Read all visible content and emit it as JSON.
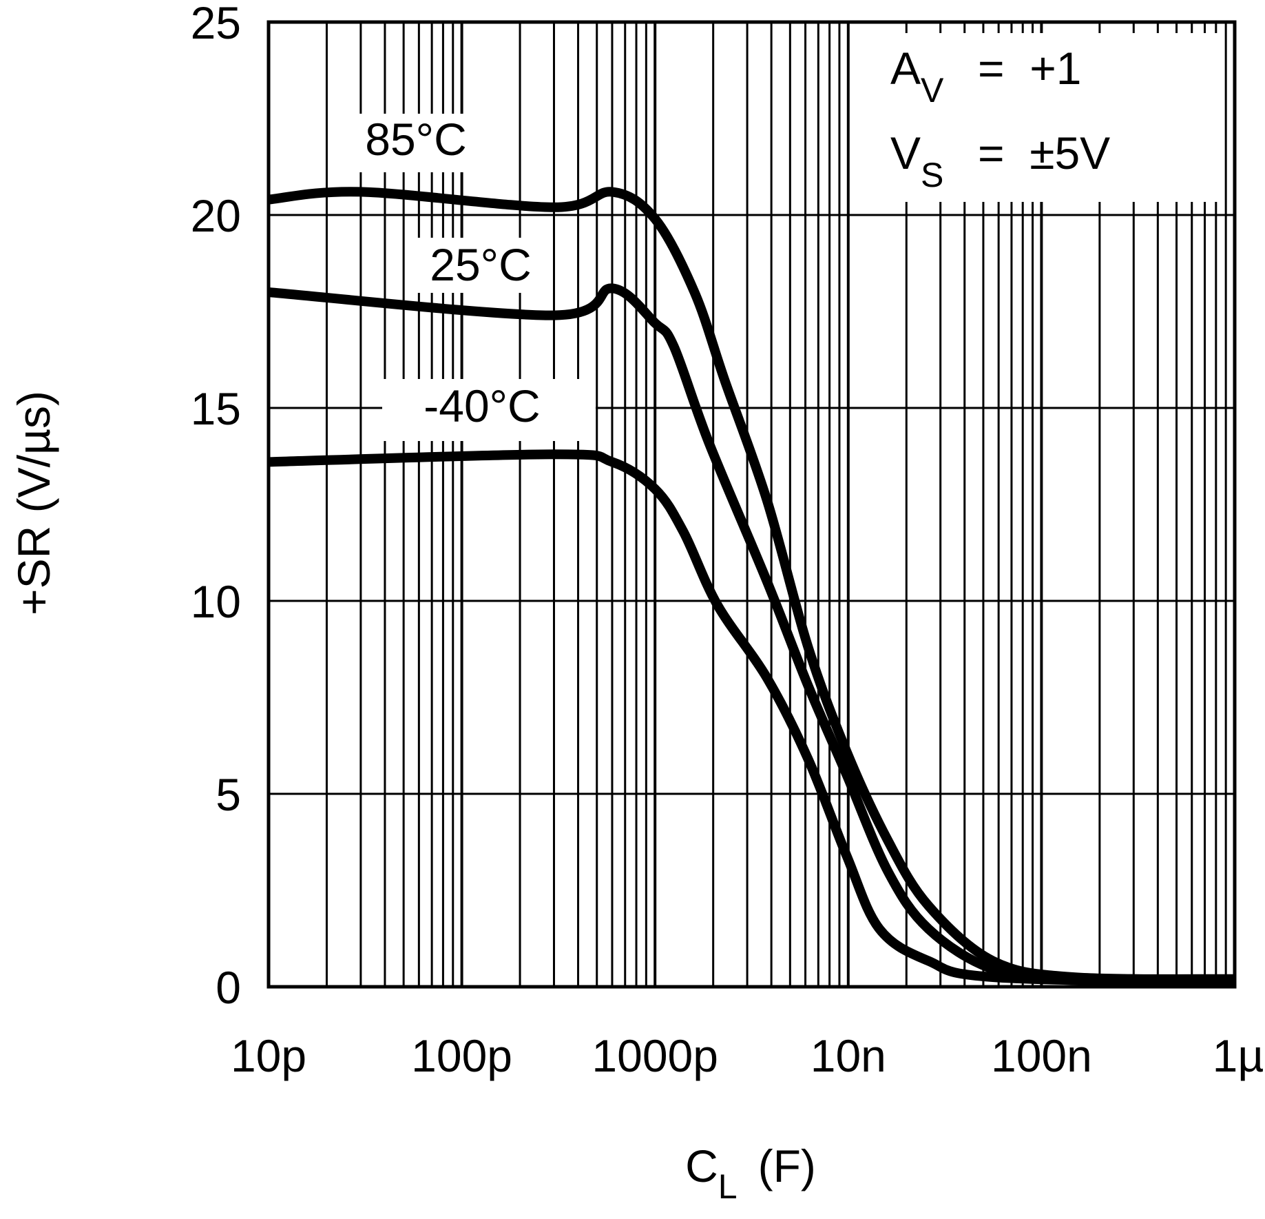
{
  "chart_data": {
    "type": "line",
    "title": "",
    "xlabel": "C",
    "xlabel_sub": "L",
    "xlabel_unit": "(F)",
    "ylabel": "+SR (V/µs)",
    "xscale": "log",
    "xlim": [
      1e-11,
      1e-06
    ],
    "ylim": [
      0,
      25
    ],
    "grid": true,
    "xticks": [
      1e-11,
      1e-10,
      1e-09,
      1e-08,
      1e-07,
      1e-06
    ],
    "xtick_labels": [
      "10p",
      "100p",
      "1000p",
      "10n",
      "100n",
      "1µ"
    ],
    "yticks": [
      0,
      5,
      10,
      15,
      20,
      25
    ],
    "ytick_labels": [
      "0",
      "5",
      "10",
      "15",
      "20",
      "25"
    ],
    "annotations": {
      "av_label": "A",
      "av_sub": "V",
      "av_value": "=  +1",
      "vs_label": "V",
      "vs_sub": "S",
      "vs_value": "=  ±5V"
    },
    "series": [
      {
        "name": "85°C",
        "x": [
          1e-11,
          3e-11,
          3e-10,
          6e-10,
          1e-09,
          1.6e-09,
          2.3e-09,
          3.8e-09,
          6.2e-09,
          9.8e-09,
          1.6e-08,
          2.6e-08,
          5.6e-08,
          1.45e-07,
          1e-06
        ],
        "y": [
          20.4,
          20.6,
          20.2,
          20.6,
          19.9,
          18.0,
          15.7,
          12.6,
          8.8,
          6.1,
          3.8,
          2.1,
          0.67,
          0.25,
          0.2
        ]
      },
      {
        "name": "25°C",
        "x": [
          1e-11,
          3e-10,
          6e-10,
          1e-09,
          1.25e-09,
          1.9e-09,
          3.8e-09,
          6.2e-09,
          9.8e-09,
          1.6e-08,
          2.6e-08,
          5.6e-08,
          1.45e-07,
          1e-06
        ],
        "y": [
          18.0,
          17.4,
          18.1,
          17.2,
          16.6,
          14.1,
          10.5,
          7.8,
          5.5,
          3.0,
          1.5,
          0.46,
          0.2,
          0.15
        ]
      },
      {
        "name": "-40°C",
        "x": [
          1e-11,
          3e-10,
          6e-10,
          1e-09,
          1.4e-09,
          2.1e-09,
          3.8e-09,
          6.2e-09,
          9.8e-09,
          1.45e-08,
          2.6e-08,
          5.6e-08,
          1e-06
        ],
        "y": [
          13.6,
          13.8,
          13.6,
          12.9,
          11.8,
          9.9,
          8.0,
          5.9,
          3.4,
          1.5,
          0.67,
          0.25,
          0.1
        ]
      }
    ]
  }
}
